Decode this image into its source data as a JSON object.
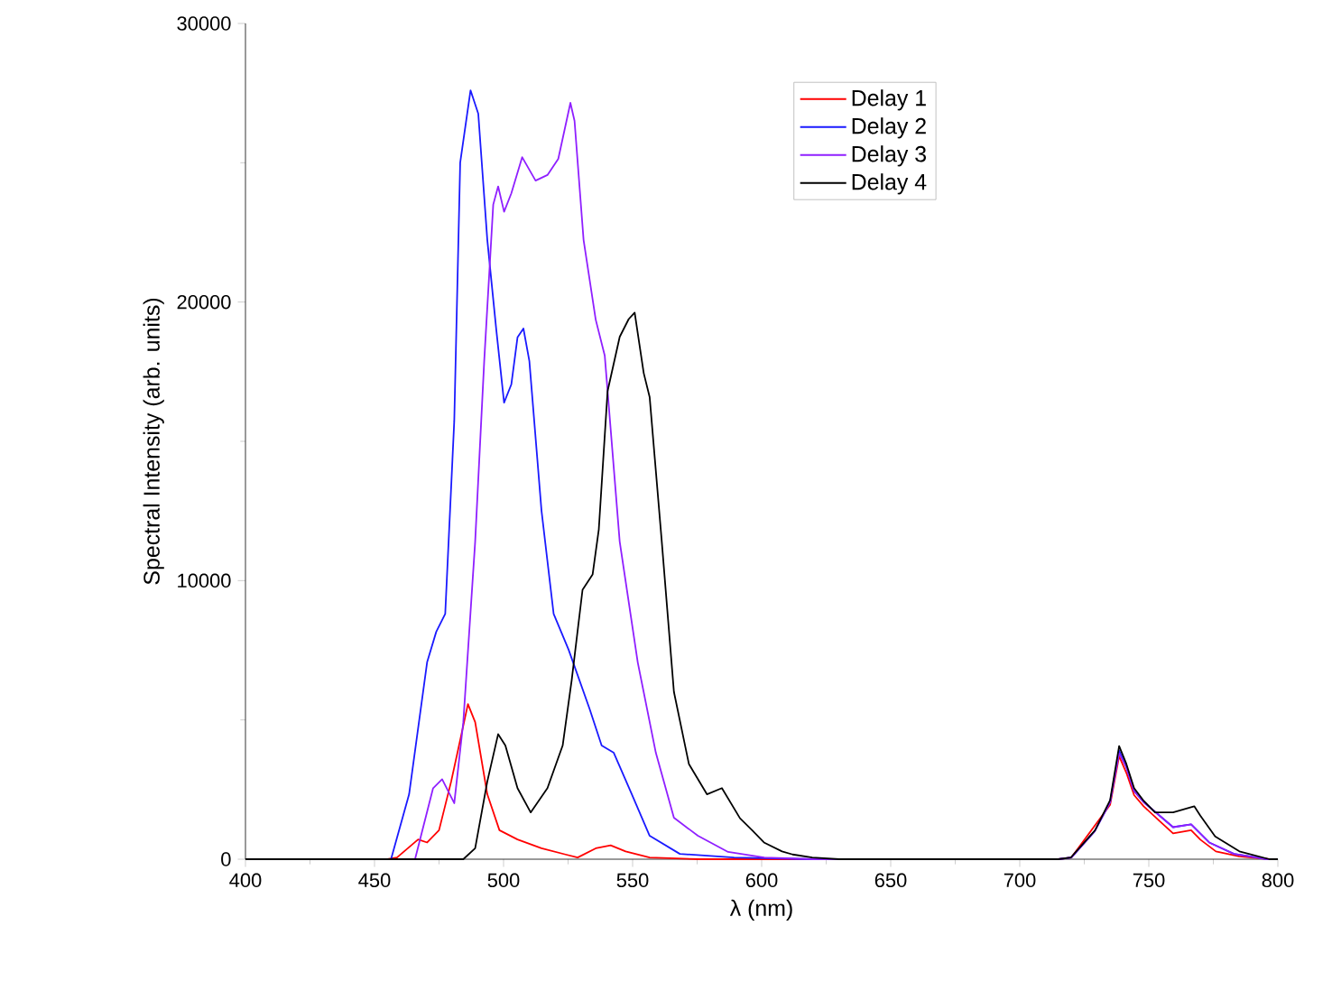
{
  "chart_data": {
    "type": "line",
    "xlabel": "λ (nm)",
    "ylabel": "Spectral Intensity (arb. units)",
    "xlim": [
      400,
      800
    ],
    "xticks": [
      400,
      450,
      500,
      550,
      600,
      650,
      700,
      750,
      800
    ],
    "ylim": [
      0,
      30000
    ],
    "yticks": [
      0,
      10000,
      20000,
      30000
    ],
    "grid": false,
    "legend": "top",
    "marker": "none",
    "line_style": "solid",
    "series": [
      {
        "name": "Delay 1",
        "color": "#ff0000",
        "x": [
          400,
          455,
          458.7,
          466.9,
          470.4,
          475.0,
          479.7,
          483.2,
          486.2,
          489.0,
          493.7,
          498.4,
          505.4,
          514.7,
          524.0,
          528.7,
          535.7,
          541.5,
          547.3,
          556.6,
          576,
          650,
          715,
          720,
          729,
          735,
          738.5,
          741.3,
          744.3,
          748,
          755,
          759.4,
          766.4,
          770,
          776,
          785,
          797,
          800
        ],
        "values": [
          0,
          0,
          60,
          710,
          600,
          1040,
          2790,
          4280,
          5570,
          4920,
          2330,
          1040,
          710,
          390,
          170,
          60,
          390,
          500,
          280,
          60,
          0,
          0,
          0,
          60,
          null,
          1950,
          3700,
          3100,
          2300,
          1900,
          1300,
          930,
          1040,
          700,
          280,
          100,
          0,
          0
        ]
      },
      {
        "name": "Delay 2",
        "color": "#1a1aff",
        "x": [
          400,
          456.4,
          463.4,
          470.4,
          473.9,
          477.4,
          480.9,
          483.2,
          487.2,
          490.2,
          493.7,
          497.2,
          500.2,
          503.0,
          505.4,
          507.7,
          510.0,
          514.7,
          519.4,
          525.2,
          533.4,
          538.0,
          542.7,
          549.7,
          556.6,
          568.3,
          589.3,
          620,
          715,
          720,
          729,
          735,
          738.5,
          741.3,
          744.3,
          748,
          755,
          759.4,
          766.4,
          773.4,
          783,
          796,
          800
        ],
        "values": [
          0,
          0,
          2330,
          7080,
          8160,
          8810,
          15740,
          25010,
          27600,
          26760,
          22230,
          18990,
          16390,
          17040,
          18730,
          19050,
          17880,
          12510,
          8810,
          7520,
          5380,
          4080,
          3820,
          2330,
          840,
          190,
          60,
          0,
          0,
          60,
          1000,
          2050,
          3900,
          3300,
          2450,
          2050,
          1500,
          1150,
          1250,
          600,
          190,
          0,
          0
        ]
      },
      {
        "name": "Delay 3",
        "color": "#8f1fff",
        "x": [
          400,
          465.7,
          472.7,
          476.2,
          480.9,
          484.4,
          489.0,
          492.5,
          496.0,
          497.9,
          500.2,
          503.0,
          507.2,
          512.4,
          517.0,
          521.2,
          525.9,
          527.5,
          531.0,
          535.7,
          539.2,
          545.0,
          552.0,
          559.0,
          566.0,
          575.3,
          587.0,
          601.0,
          620,
          715,
          720,
          729,
          735,
          738.5,
          741.3,
          744.3,
          748,
          755,
          759.4,
          766.4,
          773.4,
          783,
          796,
          800
        ],
        "values": [
          0,
          0,
          2550,
          2870,
          2010,
          4920,
          11400,
          17880,
          23500,
          24150,
          23240,
          23900,
          25200,
          24360,
          24560,
          25140,
          27150,
          26500,
          22230,
          19370,
          18080,
          11400,
          7060,
          3820,
          1490,
          840,
          260,
          60,
          0,
          0,
          60,
          1000,
          2050,
          3800,
          3300,
          2450,
          2050,
          1500,
          1150,
          1250,
          600,
          190,
          0,
          0
        ]
      },
      {
        "name": "Delay 4",
        "color": "#000000",
        "x": [
          400,
          484.4,
          489.0,
          493.7,
          497.9,
          500.7,
          505.4,
          510.5,
          517.0,
          522.9,
          526.4,
          530.6,
          534.5,
          536.9,
          540.3,
          545.0,
          548.5,
          550.8,
          554.3,
          556.6,
          561.3,
          566.0,
          571.8,
          578.8,
          584.6,
          591.6,
          596.3,
          600.9,
          607.9,
          612,
          619.6,
          630,
          715,
          719.8,
          729.2,
          735.0,
          738.5,
          741.3,
          744.3,
          747.8,
          752.4,
          759.4,
          767.6,
          769.9,
          775.7,
          785.1,
          796.7,
          800
        ],
        "values": [
          0,
          0,
          390,
          2790,
          4490,
          4080,
          2550,
          1680,
          2550,
          4080,
          6430,
          9670,
          10220,
          11840,
          16800,
          18750,
          19390,
          19620,
          17450,
          16590,
          11400,
          6010,
          3420,
          2330,
          2550,
          1470,
          1040,
          600,
          280,
          170,
          60,
          0,
          0,
          60,
          1040,
          2120,
          4060,
          3420,
          2550,
          2120,
          1680,
          1680,
          1900,
          1570,
          820,
          280,
          0,
          0
        ]
      }
    ]
  }
}
